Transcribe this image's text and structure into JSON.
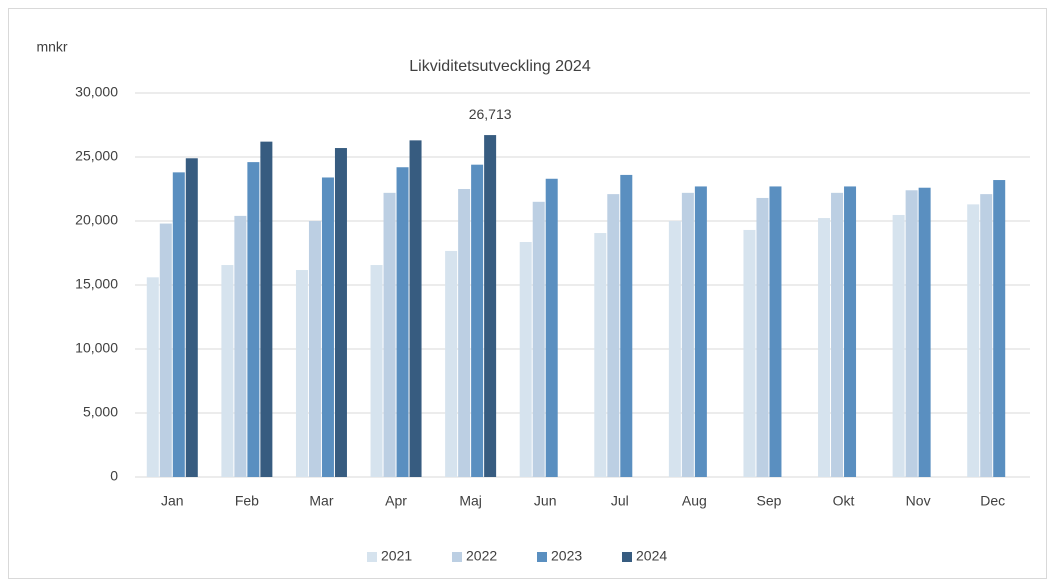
{
  "chart_data": {
    "type": "bar",
    "title": "Likviditetsutveckling 2024",
    "y_label": "mnkr",
    "categories": [
      "Jan",
      "Feb",
      "Mar",
      "Apr",
      "Maj",
      "Jun",
      "Jul",
      "Aug",
      "Sep",
      "Okt",
      "Nov",
      "Dec"
    ],
    "series": [
      {
        "name": "2021",
        "color": "#d6e3ee",
        "values": [
          15600,
          16560,
          16170,
          16560,
          17660,
          18360,
          19060,
          20000,
          19300,
          20230,
          20470,
          21300
        ]
      },
      {
        "name": "2022",
        "color": "#bccfe3",
        "values": [
          19800,
          20400,
          20000,
          22200,
          22500,
          21500,
          22100,
          22200,
          21800,
          22200,
          22400,
          22100
        ]
      },
      {
        "name": "2023",
        "color": "#5a8fc0",
        "values": [
          23800,
          24600,
          23400,
          24200,
          24400,
          23300,
          23600,
          22700,
          22700,
          22700,
          22600,
          23200
        ]
      },
      {
        "name": "2024",
        "color": "#375c80",
        "values": [
          24900,
          26200,
          25700,
          26300,
          26713,
          null,
          null,
          null,
          null,
          null,
          null,
          null
        ],
        "value_labels": [
          null,
          null,
          null,
          null,
          "26,713",
          null,
          null,
          null,
          null,
          null,
          null,
          null
        ]
      }
    ],
    "ylim": [
      0,
      30000
    ],
    "yticks": [
      0,
      {
        "value": 5000,
        "label": "5,000"
      },
      {
        "value": 10000,
        "label": "10,000"
      },
      {
        "value": 15000,
        "label": "15,000"
      },
      {
        "value": 20000,
        "label": "20,000"
      },
      {
        "value": 25000,
        "label": "25,000"
      },
      {
        "value": 30000,
        "label": "30,000"
      }
    ],
    "grid": true,
    "legend": "bottom"
  }
}
